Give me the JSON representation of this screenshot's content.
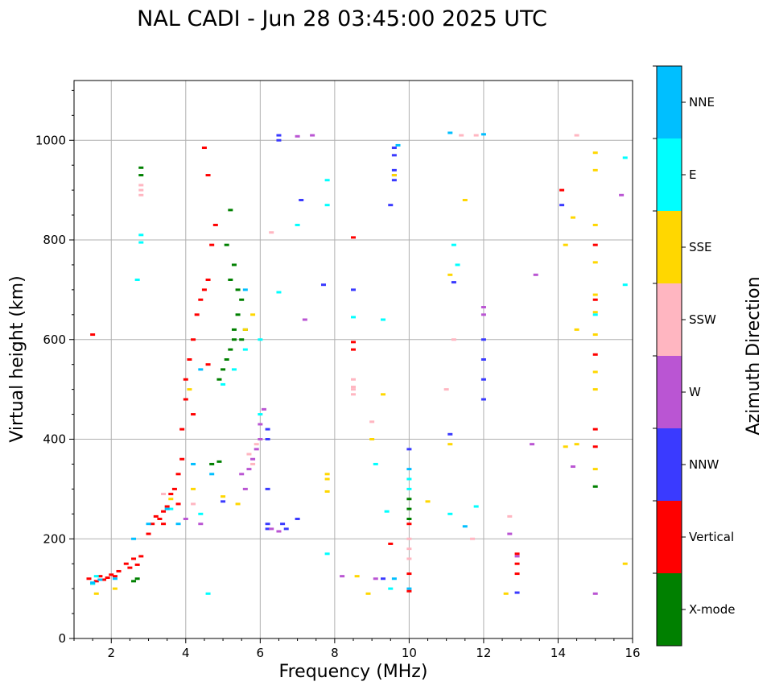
{
  "chart_data": {
    "type": "scatter",
    "title": "NAL CADI - Jun 28 03:45:00 2025 UTC",
    "xlabel": "Frequency (MHz)",
    "ylabel": "Virtual height (km)",
    "xlim": [
      1,
      16
    ],
    "ylim": [
      0,
      1120
    ],
    "xticks": [
      2,
      4,
      6,
      8,
      10,
      12,
      14,
      16
    ],
    "yticks": [
      0,
      200,
      400,
      600,
      800,
      1000
    ],
    "grid": true,
    "colorbar": {
      "label": "Azimuth Direction",
      "categories": [
        {
          "name": "NNE",
          "color": "#00bfff"
        },
        {
          "name": "E",
          "color": "#00ffff"
        },
        {
          "name": "SSE",
          "color": "#ffd700"
        },
        {
          "name": "SSW",
          "color": "#ffb6c1"
        },
        {
          "name": "W",
          "color": "#ba55d3"
        },
        {
          "name": "NNW",
          "color": "#3a3aff"
        },
        {
          "name": "Vertical",
          "color": "#ff0000"
        },
        {
          "name": "X-mode",
          "color": "#008000"
        }
      ]
    },
    "series": [
      {
        "name": "Vertical",
        "points": [
          [
            1.4,
            120
          ],
          [
            1.5,
            110
          ],
          [
            1.6,
            115
          ],
          [
            1.7,
            125
          ],
          [
            1.8,
            118
          ],
          [
            1.9,
            122
          ],
          [
            2.0,
            128
          ],
          [
            2.1,
            125
          ],
          [
            2.2,
            135
          ],
          [
            2.4,
            150
          ],
          [
            2.5,
            142
          ],
          [
            2.6,
            160
          ],
          [
            2.7,
            148
          ],
          [
            2.8,
            165
          ],
          [
            3.0,
            210
          ],
          [
            3.1,
            230
          ],
          [
            3.2,
            245
          ],
          [
            3.3,
            240
          ],
          [
            3.4,
            255
          ],
          [
            3.5,
            265
          ],
          [
            3.6,
            290
          ],
          [
            3.7,
            300
          ],
          [
            3.8,
            330
          ],
          [
            3.9,
            360
          ],
          [
            3.9,
            420
          ],
          [
            4.0,
            480
          ],
          [
            4.0,
            520
          ],
          [
            4.1,
            560
          ],
          [
            4.2,
            600
          ],
          [
            4.3,
            650
          ],
          [
            4.4,
            680
          ],
          [
            4.5,
            700
          ],
          [
            4.6,
            720
          ],
          [
            4.7,
            790
          ],
          [
            4.8,
            830
          ],
          [
            4.5,
            985
          ],
          [
            4.6,
            930
          ],
          [
            1.5,
            610
          ],
          [
            8.5,
            805
          ],
          [
            8.5,
            580
          ],
          [
            8.5,
            595
          ],
          [
            9.5,
            190
          ],
          [
            10.0,
            95
          ],
          [
            10.0,
            130
          ],
          [
            10.0,
            230
          ],
          [
            12.9,
            150
          ],
          [
            12.9,
            130
          ],
          [
            12.9,
            170
          ],
          [
            14.1,
            900
          ],
          [
            15.0,
            420
          ],
          [
            15.0,
            385
          ],
          [
            15.0,
            570
          ],
          [
            15.0,
            680
          ],
          [
            15.0,
            790
          ],
          [
            4.6,
            550
          ],
          [
            4.2,
            450
          ],
          [
            3.8,
            270
          ],
          [
            3.4,
            230
          ]
        ]
      },
      {
        "name": "X-mode",
        "points": [
          [
            2.6,
            115
          ],
          [
            2.7,
            120
          ],
          [
            2.8,
            945
          ],
          [
            2.8,
            930
          ],
          [
            4.9,
            520
          ],
          [
            5.0,
            540
          ],
          [
            5.1,
            560
          ],
          [
            5.2,
            580
          ],
          [
            5.3,
            600
          ],
          [
            5.3,
            620
          ],
          [
            5.4,
            650
          ],
          [
            5.5,
            680
          ],
          [
            5.4,
            700
          ],
          [
            5.2,
            720
          ],
          [
            5.3,
            750
          ],
          [
            5.1,
            790
          ],
          [
            5.2,
            860
          ],
          [
            5.5,
            600
          ],
          [
            5.6,
            620
          ],
          [
            4.7,
            350
          ],
          [
            4.9,
            355
          ],
          [
            10.0,
            240
          ],
          [
            10.0,
            260
          ],
          [
            10.0,
            280
          ],
          [
            15.0,
            305
          ]
        ]
      },
      {
        "name": "NNW",
        "points": [
          [
            6.2,
            420
          ],
          [
            6.2,
            400
          ],
          [
            6.2,
            300
          ],
          [
            6.2,
            230
          ],
          [
            6.2,
            220
          ],
          [
            6.5,
            1000
          ],
          [
            6.5,
            1010
          ],
          [
            6.6,
            230
          ],
          [
            6.7,
            220
          ],
          [
            7.0,
            240
          ],
          [
            7.1,
            880
          ],
          [
            7.7,
            710
          ],
          [
            8.5,
            700
          ],
          [
            9.3,
            120
          ],
          [
            9.6,
            985
          ],
          [
            9.6,
            970
          ],
          [
            9.6,
            940
          ],
          [
            9.6,
            930
          ],
          [
            9.6,
            920
          ],
          [
            9.5,
            870
          ],
          [
            10.0,
            380
          ],
          [
            12.0,
            600
          ],
          [
            12.0,
            560
          ],
          [
            12.0,
            520
          ],
          [
            12.0,
            480
          ],
          [
            12.9,
            92
          ],
          [
            14.1,
            870
          ],
          [
            11.1,
            410
          ],
          [
            11.2,
            715
          ],
          [
            5.0,
            275
          ]
        ]
      },
      {
        "name": "W",
        "points": [
          [
            5.7,
            340
          ],
          [
            5.8,
            360
          ],
          [
            5.9,
            380
          ],
          [
            6.0,
            400
          ],
          [
            6.1,
            460
          ],
          [
            6.0,
            430
          ],
          [
            5.5,
            330
          ],
          [
            5.6,
            300
          ],
          [
            6.3,
            220
          ],
          [
            6.5,
            215
          ],
          [
            7.2,
            640
          ],
          [
            7.0,
            1008
          ],
          [
            7.4,
            1010
          ],
          [
            12.0,
            665
          ],
          [
            12.0,
            650
          ],
          [
            12.9,
            165
          ],
          [
            13.4,
            730
          ],
          [
            13.3,
            390
          ],
          [
            12.7,
            210
          ],
          [
            14.4,
            345
          ],
          [
            15.0,
            90
          ],
          [
            15.7,
            890
          ],
          [
            8.2,
            125
          ],
          [
            9.1,
            120
          ],
          [
            4.0,
            240
          ],
          [
            4.4,
            230
          ]
        ]
      },
      {
        "name": "SSW",
        "points": [
          [
            2.8,
            900
          ],
          [
            2.8,
            890
          ],
          [
            2.8,
            910
          ],
          [
            5.8,
            350
          ],
          [
            5.7,
            370
          ],
          [
            5.9,
            390
          ],
          [
            6.3,
            815
          ],
          [
            8.5,
            520
          ],
          [
            8.5,
            500
          ],
          [
            8.5,
            490
          ],
          [
            8.5,
            505
          ],
          [
            9.0,
            435
          ],
          [
            10.0,
            180
          ],
          [
            10.0,
            160
          ],
          [
            10.0,
            200
          ],
          [
            11.0,
            500
          ],
          [
            11.2,
            600
          ],
          [
            11.4,
            1010
          ],
          [
            11.8,
            1010
          ],
          [
            12.7,
            245
          ],
          [
            14.5,
            1010
          ],
          [
            11.7,
            200
          ],
          [
            4.2,
            270
          ],
          [
            3.4,
            290
          ]
        ]
      },
      {
        "name": "SSE",
        "points": [
          [
            1.6,
            90
          ],
          [
            2.1,
            100
          ],
          [
            4.1,
            500
          ],
          [
            5.8,
            650
          ],
          [
            5.6,
            620
          ],
          [
            7.8,
            330
          ],
          [
            7.8,
            320
          ],
          [
            7.8,
            295
          ],
          [
            8.6,
            125
          ],
          [
            9.0,
            400
          ],
          [
            9.3,
            490
          ],
          [
            9.6,
            930
          ],
          [
            11.1,
            730
          ],
          [
            11.1,
            390
          ],
          [
            11.5,
            880
          ],
          [
            12.6,
            90
          ],
          [
            14.2,
            790
          ],
          [
            14.2,
            385
          ],
          [
            14.4,
            845
          ],
          [
            14.5,
            620
          ],
          [
            14.5,
            390
          ],
          [
            15.0,
            975
          ],
          [
            15.0,
            940
          ],
          [
            15.0,
            830
          ],
          [
            15.0,
            755
          ],
          [
            15.0,
            690
          ],
          [
            15.0,
            655
          ],
          [
            15.0,
            610
          ],
          [
            15.0,
            535
          ],
          [
            15.0,
            500
          ],
          [
            15.0,
            340
          ],
          [
            15.8,
            150
          ],
          [
            10.5,
            275
          ],
          [
            8.9,
            90
          ],
          [
            5.4,
            270
          ],
          [
            4.2,
            300
          ],
          [
            3.6,
            280
          ],
          [
            5.0,
            285
          ]
        ]
      },
      {
        "name": "E",
        "points": [
          [
            1.5,
            110
          ],
          [
            1.6,
            125
          ],
          [
            2.7,
            720
          ],
          [
            2.8,
            810
          ],
          [
            2.8,
            795
          ],
          [
            5.0,
            510
          ],
          [
            5.3,
            540
          ],
          [
            5.6,
            580
          ],
          [
            6.0,
            600
          ],
          [
            6.5,
            695
          ],
          [
            6.0,
            450
          ],
          [
            7.0,
            830
          ],
          [
            7.8,
            170
          ],
          [
            7.8,
            870
          ],
          [
            7.8,
            920
          ],
          [
            8.5,
            645
          ],
          [
            9.3,
            640
          ],
          [
            9.1,
            350
          ],
          [
            9.4,
            255
          ],
          [
            9.5,
            100
          ],
          [
            10.0,
            320
          ],
          [
            10.0,
            300
          ],
          [
            11.1,
            250
          ],
          [
            11.2,
            790
          ],
          [
            11.3,
            750
          ],
          [
            11.8,
            265
          ],
          [
            15.0,
            650
          ],
          [
            15.8,
            965
          ],
          [
            15.8,
            710
          ],
          [
            4.6,
            90
          ],
          [
            3.6,
            260
          ],
          [
            4.4,
            250
          ]
        ]
      },
      {
        "name": "NNE",
        "points": [
          [
            1.5,
            112
          ],
          [
            1.7,
            118
          ],
          [
            2.1,
            120
          ],
          [
            2.6,
            200
          ],
          [
            3.0,
            230
          ],
          [
            3.5,
            260
          ],
          [
            4.4,
            540
          ],
          [
            4.2,
            350
          ],
          [
            4.7,
            330
          ],
          [
            9.6,
            120
          ],
          [
            9.7,
            990
          ],
          [
            10.0,
            100
          ],
          [
            10.0,
            340
          ],
          [
            11.1,
            1015
          ],
          [
            11.5,
            225
          ],
          [
            12.0,
            1012
          ],
          [
            3.8,
            230
          ],
          [
            5.6,
            700
          ]
        ]
      }
    ],
    "annotations": []
  }
}
